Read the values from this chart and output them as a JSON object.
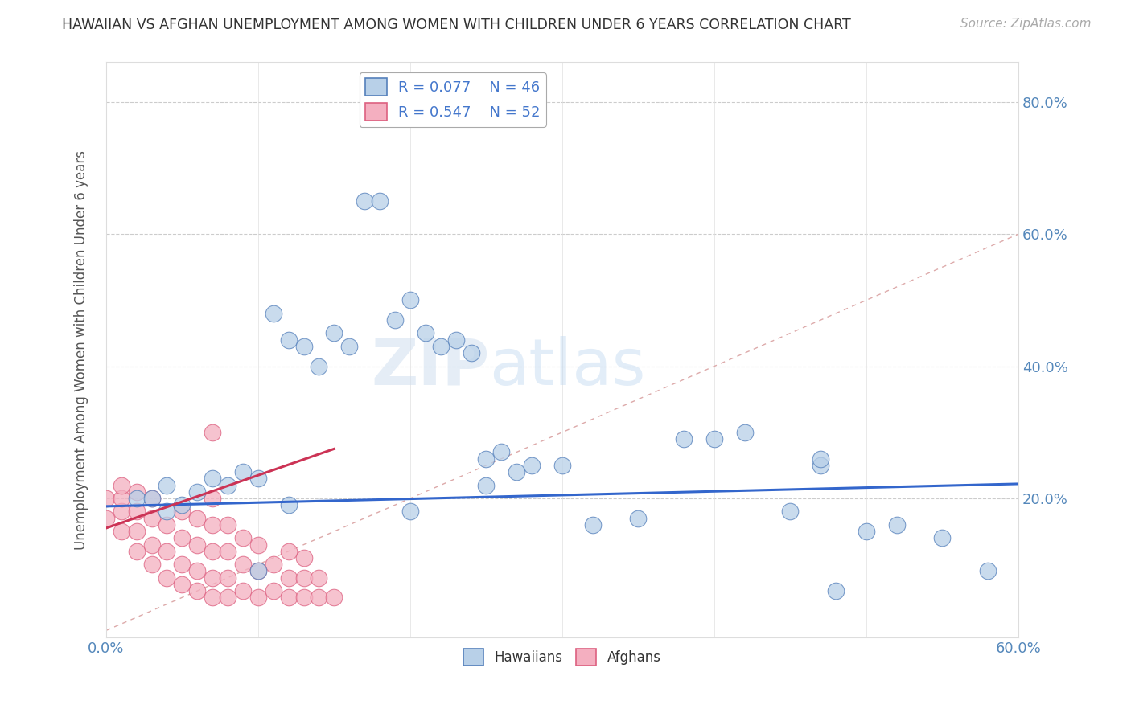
{
  "title": "HAWAIIAN VS AFGHAN UNEMPLOYMENT AMONG WOMEN WITH CHILDREN UNDER 6 YEARS CORRELATION CHART",
  "source": "Source: ZipAtlas.com",
  "ylabel": "Unemployment Among Women with Children Under 6 years",
  "xlim": [
    0.0,
    0.6
  ],
  "ylim": [
    -0.01,
    0.86
  ],
  "legend_R_hawaiian": "R = 0.077",
  "legend_N_hawaiian": "N = 46",
  "legend_R_afghan": "R = 0.547",
  "legend_N_afghan": "N = 52",
  "hawaiian_color": "#b8d0e8",
  "afghan_color": "#f4afc0",
  "hawaiian_edge": "#5580bb",
  "afghan_edge": "#dd6080",
  "line_hawaiian_color": "#3366cc",
  "line_afghan_color": "#cc3355",
  "diagonal_color": "#ddaaaa",
  "background_color": "#ffffff",
  "hawaiian_x": [
    0.02,
    0.03,
    0.04,
    0.04,
    0.05,
    0.06,
    0.07,
    0.08,
    0.09,
    0.1,
    0.1,
    0.11,
    0.12,
    0.13,
    0.14,
    0.15,
    0.16,
    0.17,
    0.18,
    0.19,
    0.2,
    0.21,
    0.22,
    0.23,
    0.24,
    0.25,
    0.26,
    0.27,
    0.28,
    0.3,
    0.32,
    0.35,
    0.38,
    0.4,
    0.42,
    0.45,
    0.48,
    0.5,
    0.52,
    0.55,
    0.58,
    0.2,
    0.25,
    0.47,
    0.47,
    0.12
  ],
  "hawaiian_y": [
    0.2,
    0.2,
    0.18,
    0.22,
    0.19,
    0.21,
    0.23,
    0.22,
    0.24,
    0.09,
    0.23,
    0.48,
    0.44,
    0.43,
    0.4,
    0.45,
    0.43,
    0.65,
    0.65,
    0.47,
    0.5,
    0.45,
    0.43,
    0.44,
    0.42,
    0.26,
    0.27,
    0.24,
    0.25,
    0.25,
    0.16,
    0.17,
    0.29,
    0.29,
    0.3,
    0.18,
    0.06,
    0.15,
    0.16,
    0.14,
    0.09,
    0.18,
    0.22,
    0.25,
    0.26,
    0.19
  ],
  "afghan_x": [
    0.0,
    0.0,
    0.01,
    0.01,
    0.01,
    0.01,
    0.02,
    0.02,
    0.02,
    0.02,
    0.03,
    0.03,
    0.03,
    0.03,
    0.04,
    0.04,
    0.04,
    0.05,
    0.05,
    0.05,
    0.05,
    0.06,
    0.06,
    0.06,
    0.06,
    0.07,
    0.07,
    0.07,
    0.07,
    0.07,
    0.08,
    0.08,
    0.08,
    0.08,
    0.09,
    0.09,
    0.09,
    0.1,
    0.1,
    0.1,
    0.11,
    0.11,
    0.12,
    0.12,
    0.12,
    0.13,
    0.13,
    0.13,
    0.14,
    0.14,
    0.15,
    0.07
  ],
  "afghan_y": [
    0.17,
    0.2,
    0.15,
    0.18,
    0.2,
    0.22,
    0.12,
    0.15,
    0.18,
    0.21,
    0.1,
    0.13,
    0.17,
    0.2,
    0.08,
    0.12,
    0.16,
    0.07,
    0.1,
    0.14,
    0.18,
    0.06,
    0.09,
    0.13,
    0.17,
    0.05,
    0.08,
    0.12,
    0.16,
    0.2,
    0.05,
    0.08,
    0.12,
    0.16,
    0.06,
    0.1,
    0.14,
    0.05,
    0.09,
    0.13,
    0.06,
    0.1,
    0.05,
    0.08,
    0.12,
    0.05,
    0.08,
    0.11,
    0.05,
    0.08,
    0.05,
    0.3
  ],
  "hawaiian_line_x": [
    0.0,
    0.6
  ],
  "hawaiian_line_y": [
    0.188,
    0.222
  ],
  "afghan_line_x": [
    0.0,
    0.15
  ],
  "afghan_line_y": [
    0.155,
    0.275
  ]
}
